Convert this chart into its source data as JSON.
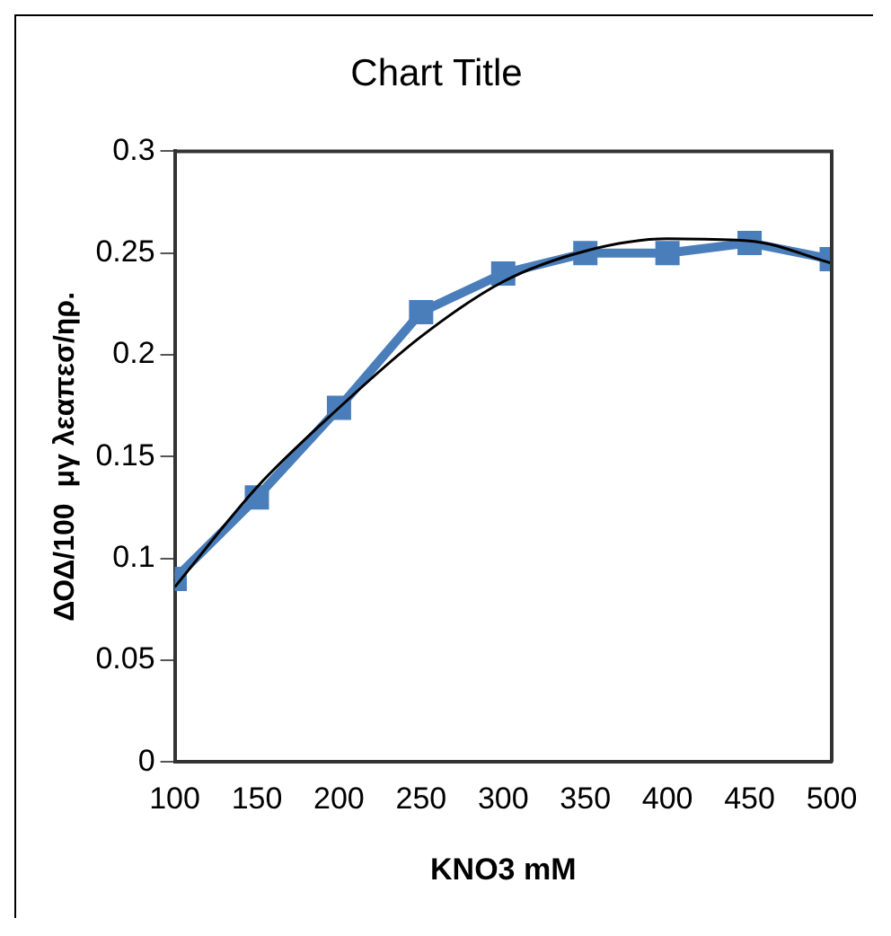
{
  "chart_data": {
    "type": "line",
    "title": "Chart Title",
    "xlabel": "KNO3 mM",
    "ylabel": "ΔΟΔ/100  μγ λεαπεσ/ηρ.",
    "x": [
      100,
      150,
      200,
      250,
      300,
      350,
      400,
      450,
      500
    ],
    "series": [
      {
        "color": "#4a7ebb",
        "values": [
          0.09,
          0.13,
          0.174,
          0.221,
          0.24,
          0.25,
          0.25,
          0.255,
          0.247
        ],
        "marker": "square"
      },
      {
        "color": "#000000",
        "x": [
          100,
          150,
          200,
          250,
          300,
          350,
          400,
          450,
          500
        ],
        "values": [
          0.086,
          0.135,
          0.174,
          0.209,
          0.236,
          0.251,
          0.257,
          0.256,
          0.245
        ],
        "marker": "none"
      }
    ],
    "xlim": [
      100,
      500
    ],
    "xticks": [
      100,
      150,
      200,
      250,
      300,
      350,
      400,
      450,
      500
    ],
    "ylim": [
      0,
      0.3
    ],
    "yticks": [
      0,
      0.05,
      0.1,
      0.15,
      0.2,
      0.25,
      0.3
    ],
    "grid": false,
    "legend": false
  }
}
